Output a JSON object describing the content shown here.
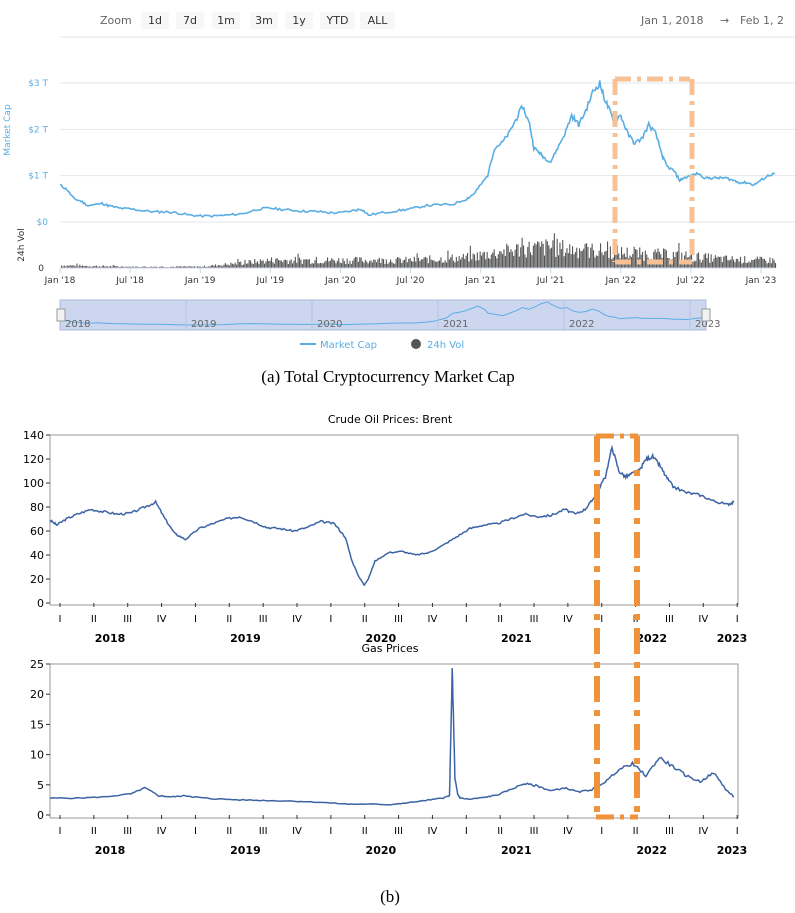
{
  "panel_a": {
    "toolbar": {
      "zoom_label": "Zoom",
      "buttons": [
        "1d",
        "7d",
        "1m",
        "3m",
        "1y",
        "YTD",
        "ALL"
      ],
      "date_from": "Jan 1, 2018",
      "arrow": "→",
      "date_to": "Feb 1, 2"
    },
    "caption": "(a) Total Cryptocurrency Market Cap",
    "navigator_years": [
      "2018",
      "2019",
      "2020",
      "2021",
      "2022",
      "2023"
    ],
    "legend": {
      "market_cap": "Market Cap",
      "vol": "24h Vol"
    }
  },
  "panel_b": {
    "caption": "(b)"
  },
  "colors": {
    "crypto_line": "#5aaee3",
    "vol_bar": "#555555",
    "oil_line": "#3c64a5",
    "highlight": "#f0923a",
    "highlight_light": "#f7c195",
    "navigator_bg": "#cdd6ef"
  },
  "chart_data": [
    {
      "type": "line",
      "title": "Total Cryptocurrency Market Cap",
      "ylabel": "Market Cap",
      "y2label": "24h Vol",
      "x_ticks": [
        "Jan '18",
        "Jul '18",
        "Jan '19",
        "Jul '19",
        "Jan '20",
        "Jul '20",
        "Jan '21",
        "Jul '21",
        "Jan '22",
        "Jul '22",
        "Jan '23"
      ],
      "y_ticks": [
        "$0",
        "$1 T",
        "$2 T",
        "$3 T"
      ],
      "vol_ticks": [
        "0"
      ],
      "ylim": [
        0,
        3.2
      ],
      "xlim": [
        2018.0,
        2023.1
      ],
      "series": [
        {
          "name": "Market Cap",
          "unit": "trillion USD",
          "x": [
            2018.0,
            2018.05,
            2018.1,
            2018.15,
            2018.2,
            2018.3,
            2018.35,
            2018.42,
            2018.5,
            2018.58,
            2018.67,
            2018.75,
            2018.83,
            2018.92,
            2019.0,
            2019.1,
            2019.2,
            2019.3,
            2019.42,
            2019.5,
            2019.58,
            2019.67,
            2019.75,
            2019.83,
            2019.92,
            2020.0,
            2020.1,
            2020.15,
            2020.2,
            2020.3,
            2020.42,
            2020.5,
            2020.6,
            2020.7,
            2020.8,
            2020.9,
            2020.95,
            2021.0,
            2021.05,
            2021.1,
            2021.15,
            2021.2,
            2021.25,
            2021.3,
            2021.35,
            2021.38,
            2021.42,
            2021.45,
            2021.5,
            2021.55,
            2021.6,
            2021.65,
            2021.7,
            2021.75,
            2021.8,
            2021.85,
            2021.88,
            2021.92,
            2021.95,
            2022.0,
            2022.05,
            2022.1,
            2022.15,
            2022.2,
            2022.25,
            2022.3,
            2022.33,
            2022.38,
            2022.42,
            2022.45,
            2022.5,
            2022.55,
            2022.6,
            2022.65,
            2022.7,
            2022.75,
            2022.8,
            2022.85,
            2022.9,
            2022.95,
            2023.0,
            2023.05,
            2023.1
          ],
          "y": [
            0.8,
            0.7,
            0.5,
            0.45,
            0.35,
            0.4,
            0.35,
            0.3,
            0.28,
            0.25,
            0.22,
            0.22,
            0.2,
            0.15,
            0.13,
            0.13,
            0.15,
            0.18,
            0.28,
            0.3,
            0.27,
            0.25,
            0.23,
            0.23,
            0.2,
            0.2,
            0.25,
            0.28,
            0.15,
            0.2,
            0.25,
            0.28,
            0.35,
            0.37,
            0.38,
            0.5,
            0.6,
            0.8,
            1.0,
            1.6,
            1.7,
            1.9,
            2.2,
            2.5,
            2.1,
            1.6,
            1.5,
            1.4,
            1.3,
            1.6,
            1.9,
            2.3,
            2.1,
            2.4,
            2.8,
            3.0,
            2.7,
            2.4,
            2.2,
            2.3,
            1.9,
            1.7,
            1.8,
            2.1,
            1.9,
            1.4,
            1.2,
            1.1,
            0.9,
            0.95,
            1.0,
            1.05,
            0.95,
            0.95,
            0.95,
            0.95,
            0.9,
            0.85,
            0.85,
            0.8,
            0.9,
            1.0,
            1.05
          ]
        },
        {
          "name": "24h Vol",
          "unit": "relative (0-1)",
          "x": [
            2018.0,
            2018.5,
            2019.0,
            2019.2,
            2019.5,
            2020.0,
            2020.5,
            2020.9,
            2021.0,
            2021.3,
            2021.5,
            2021.7,
            2021.9,
            2022.1,
            2022.4,
            2022.7,
            2023.0,
            2023.1
          ],
          "y": [
            0.1,
            0.05,
            0.05,
            0.15,
            0.3,
            0.3,
            0.3,
            0.4,
            0.5,
            0.75,
            0.8,
            0.7,
            0.65,
            0.55,
            0.5,
            0.35,
            0.3,
            0.3
          ]
        }
      ],
      "highlight_window": [
        "Dec 2021",
        "Jul 2022"
      ]
    },
    {
      "type": "line",
      "title": "Crude Oil Prices: Brent",
      "ylim": [
        0,
        140
      ],
      "y_ticks": [
        "0",
        "20",
        "40",
        "60",
        "80",
        "100",
        "120",
        "140"
      ],
      "quarter_ticks": [
        "I",
        "II",
        "III",
        "IV",
        "I",
        "II",
        "III",
        "IV",
        "I",
        "II",
        "III",
        "IV",
        "I",
        "II",
        "III",
        "IV",
        "I",
        "II",
        "III",
        "IV",
        "I"
      ],
      "year_labels": [
        "2018",
        "2019",
        "2020",
        "2021",
        "2022",
        "2023"
      ],
      "x": [
        2018.0,
        2018.05,
        2018.12,
        2018.2,
        2018.3,
        2018.4,
        2018.5,
        2018.6,
        2018.7,
        2018.78,
        2018.85,
        2018.92,
        2019.0,
        2019.1,
        2019.2,
        2019.3,
        2019.4,
        2019.5,
        2019.6,
        2019.7,
        2019.8,
        2019.9,
        2020.0,
        2020.1,
        2020.18,
        2020.23,
        2020.28,
        2020.32,
        2020.35,
        2020.4,
        2020.5,
        2020.6,
        2020.7,
        2020.8,
        2020.9,
        2021.0,
        2021.1,
        2021.2,
        2021.3,
        2021.4,
        2021.5,
        2021.6,
        2021.7,
        2021.8,
        2021.88,
        2021.95,
        2022.0,
        2022.05,
        2022.1,
        2022.15,
        2022.2,
        2022.25,
        2022.3,
        2022.35,
        2022.4,
        2022.45,
        2022.5,
        2022.55,
        2022.6,
        2022.7,
        2022.8,
        2022.9,
        2023.0,
        2023.05
      ],
      "y": [
        69,
        65,
        70,
        74,
        78,
        76,
        74,
        75,
        80,
        84,
        70,
        58,
        53,
        62,
        66,
        70,
        72,
        68,
        63,
        62,
        60,
        63,
        68,
        66,
        55,
        35,
        22,
        15,
        20,
        35,
        42,
        43,
        40,
        42,
        48,
        55,
        62,
        65,
        66,
        70,
        74,
        72,
        73,
        78,
        74,
        78,
        85,
        95,
        105,
        130,
        110,
        105,
        108,
        110,
        120,
        122,
        115,
        105,
        97,
        92,
        90,
        85,
        82,
        84
      ]
    },
    {
      "type": "line",
      "title": "Gas Prices",
      "ylim": [
        0,
        25
      ],
      "y_ticks": [
        "0",
        "5",
        "10",
        "15",
        "20",
        "25"
      ],
      "quarter_ticks": [
        "I",
        "II",
        "III",
        "IV",
        "I",
        "II",
        "III",
        "IV",
        "I",
        "II",
        "III",
        "IV",
        "I",
        "II",
        "III",
        "IV",
        "I",
        "II",
        "III",
        "IV",
        "I"
      ],
      "year_labels": [
        "2018",
        "2019",
        "2020",
        "2021",
        "2022",
        "2023"
      ],
      "x": [
        2018.0,
        2018.2,
        2018.4,
        2018.6,
        2018.7,
        2018.8,
        2018.9,
        2019.0,
        2019.1,
        2019.2,
        2019.4,
        2019.6,
        2019.8,
        2020.0,
        2020.2,
        2020.4,
        2020.5,
        2020.6,
        2020.7,
        2020.8,
        2020.9,
        2020.95,
        2020.97,
        2020.99,
        2021.01,
        2021.03,
        2021.1,
        2021.2,
        2021.3,
        2021.4,
        2021.5,
        2021.6,
        2021.7,
        2021.8,
        2021.9,
        2022.0,
        2022.1,
        2022.2,
        2022.3,
        2022.4,
        2022.5,
        2022.6,
        2022.7,
        2022.8,
        2022.9,
        2023.0,
        2023.05
      ],
      "y": [
        2.8,
        2.8,
        3.0,
        3.5,
        4.5,
        3.2,
        3.0,
        3.2,
        2.9,
        2.7,
        2.5,
        2.4,
        2.3,
        2.1,
        1.8,
        1.8,
        1.7,
        1.9,
        2.2,
        2.5,
        2.8,
        3.2,
        24,
        6,
        3.4,
        2.8,
        2.6,
        2.9,
        3.3,
        4.2,
        5.2,
        4.8,
        4.0,
        4.5,
        3.8,
        4.2,
        5.5,
        7.5,
        8.5,
        6.5,
        9.5,
        8.0,
        6.5,
        5.5,
        7.0,
        4.0,
        3.0
      ]
    }
  ]
}
